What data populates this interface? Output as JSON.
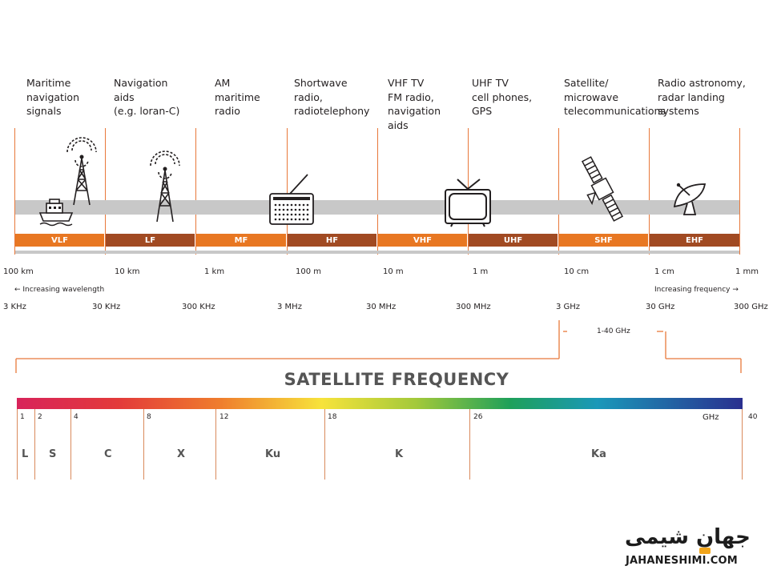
{
  "applications": [
    "Maritime\nnavigation\nsignals",
    "Navigation\naids\n(e.g. loran-C)",
    "AM\nmaritime\nradio",
    "Shortwave\nradio,\nradiotelephony",
    "VHF TV\nFM radio,\nnavigation\naids",
    "UHF TV\ncell phones,\nGPS",
    "Satellite/\nmicrowave\ntelecommunications",
    "Radio astronomy,\nradar landing\nsystems"
  ],
  "bands": [
    "VLF",
    "LF",
    "MF",
    "HF",
    "VHF",
    "UHF",
    "SHF",
    "EHF"
  ],
  "band_colors": {
    "orange": "#e87722",
    "brown": "#a14a22"
  },
  "wavelengths": [
    "100 km",
    "10 km",
    "1 km",
    "100 m",
    "10 m",
    "1 m",
    "10 cm",
    "1 cm",
    "1 mm"
  ],
  "increasing_wavelength": "← Increasing wavelength",
  "increasing_frequency": "Increasing frequency →",
  "frequencies": [
    "3 KHz",
    "30 KHz",
    "300 KHz",
    "3 MHz",
    "30 MHz",
    "300 MHz",
    "3 GHz",
    "30 GHz",
    "300 GHz"
  ],
  "satellite_range": "1-40 GHz",
  "satellite_title": "SATELLITE FREQUENCY",
  "ghz_ticks": [
    "1",
    "2",
    "4",
    "8",
    "12",
    "18",
    "26",
    "40"
  ],
  "ghz_unit": "GHz",
  "sat_bands": [
    "L",
    "S",
    "C",
    "X",
    "Ku",
    "K",
    "Ka"
  ],
  "icons": [
    "ship-icon",
    "radio-tower-icon",
    "radio-tower-icon",
    "radio-icon",
    "television-icon",
    "satellite-icon",
    "satellite-dish-icon"
  ],
  "logo": {
    "persian": "جهان شیمی",
    "english": "JAHANESHIMI.COM"
  }
}
